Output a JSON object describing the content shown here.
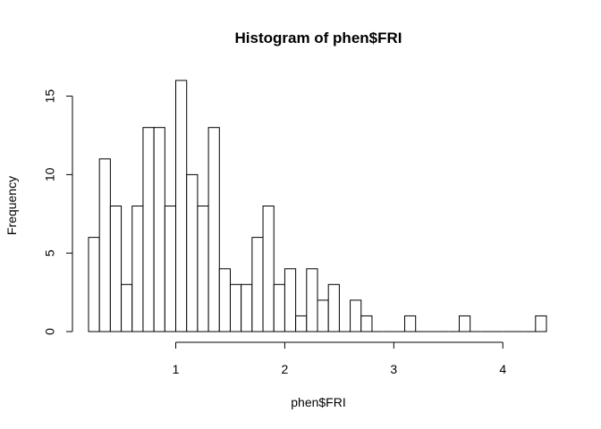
{
  "chart_data": {
    "type": "bar",
    "title": "Histogram of phen$FRI",
    "xlabel": "phen$FRI",
    "ylabel": "Frequency",
    "bin_width": 0.1,
    "bin_start": 0.2,
    "values": [
      6,
      11,
      8,
      3,
      8,
      13,
      13,
      8,
      16,
      10,
      8,
      13,
      4,
      3,
      3,
      6,
      8,
      3,
      4,
      1,
      4,
      2,
      3,
      0,
      2,
      1,
      0,
      0,
      0,
      1,
      0,
      0,
      0,
      0,
      1,
      0,
      0,
      0,
      0,
      0,
      0,
      1
    ],
    "xlim": [
      0.2,
      4.4
    ],
    "ylim": [
      0,
      16
    ],
    "x_ticks": [
      1,
      2,
      3,
      4
    ],
    "x_tick_labels": [
      "1",
      "2",
      "3",
      "4"
    ],
    "y_ticks": [
      0,
      5,
      10,
      15
    ],
    "y_tick_labels": [
      "0",
      "5",
      "10",
      "15"
    ],
    "grid": false,
    "bar_fill": "#ffffff",
    "bar_stroke": "#000000"
  }
}
